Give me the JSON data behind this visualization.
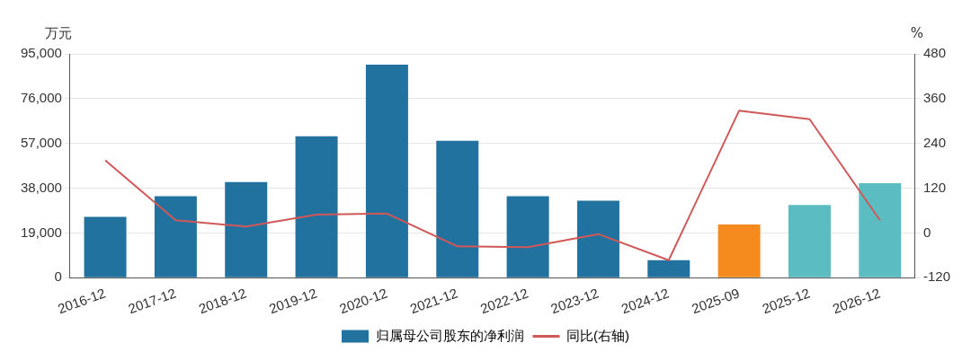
{
  "chart_data": {
    "type": "bar",
    "ylabel": "万元",
    "y2label": "%",
    "categories": [
      "2016-12",
      "2017-12",
      "2018-12",
      "2019-12",
      "2020-12",
      "2021-12",
      "2022-12",
      "2023-12",
      "2024-12",
      "2025-09",
      "2025-12",
      "2026-12"
    ],
    "series": [
      {
        "name": "归属母公司股东的净利润",
        "color": "#21729f",
        "colors": [
          "#21729f",
          "#21729f",
          "#21729f",
          "#21729f",
          "#21729f",
          "#21729f",
          "#21729f",
          "#21729f",
          "#21729f",
          "#f58a1f",
          "#5bbcc1",
          "#5bbcc1"
        ],
        "values": [
          25800,
          34600,
          40600,
          60000,
          90400,
          58100,
          34600,
          32700,
          7400,
          22600,
          30900,
          40100
        ]
      },
      {
        "name": "同比(右轴)",
        "type": "line",
        "axis": "y2",
        "color": "#d05858",
        "values": [
          195,
          34,
          17,
          49,
          52,
          -36,
          -38,
          -3,
          -73,
          328,
          305,
          34
        ]
      }
    ],
    "ylim": [
      0,
      95000
    ],
    "yticks": [
      {
        "value": 0,
        "label": "0"
      },
      {
        "value": 19000,
        "label": "19,000"
      },
      {
        "value": 38000,
        "label": "38,000"
      },
      {
        "value": 57000,
        "label": "57,000"
      },
      {
        "value": 76000,
        "label": "76,000"
      },
      {
        "value": 95000,
        "label": "95,000"
      }
    ],
    "y2lim": [
      -120,
      480
    ],
    "y2ticks": [
      -120,
      0,
      120,
      240,
      360,
      480
    ],
    "grid": "y",
    "legend": "bottom",
    "marker": "none"
  }
}
